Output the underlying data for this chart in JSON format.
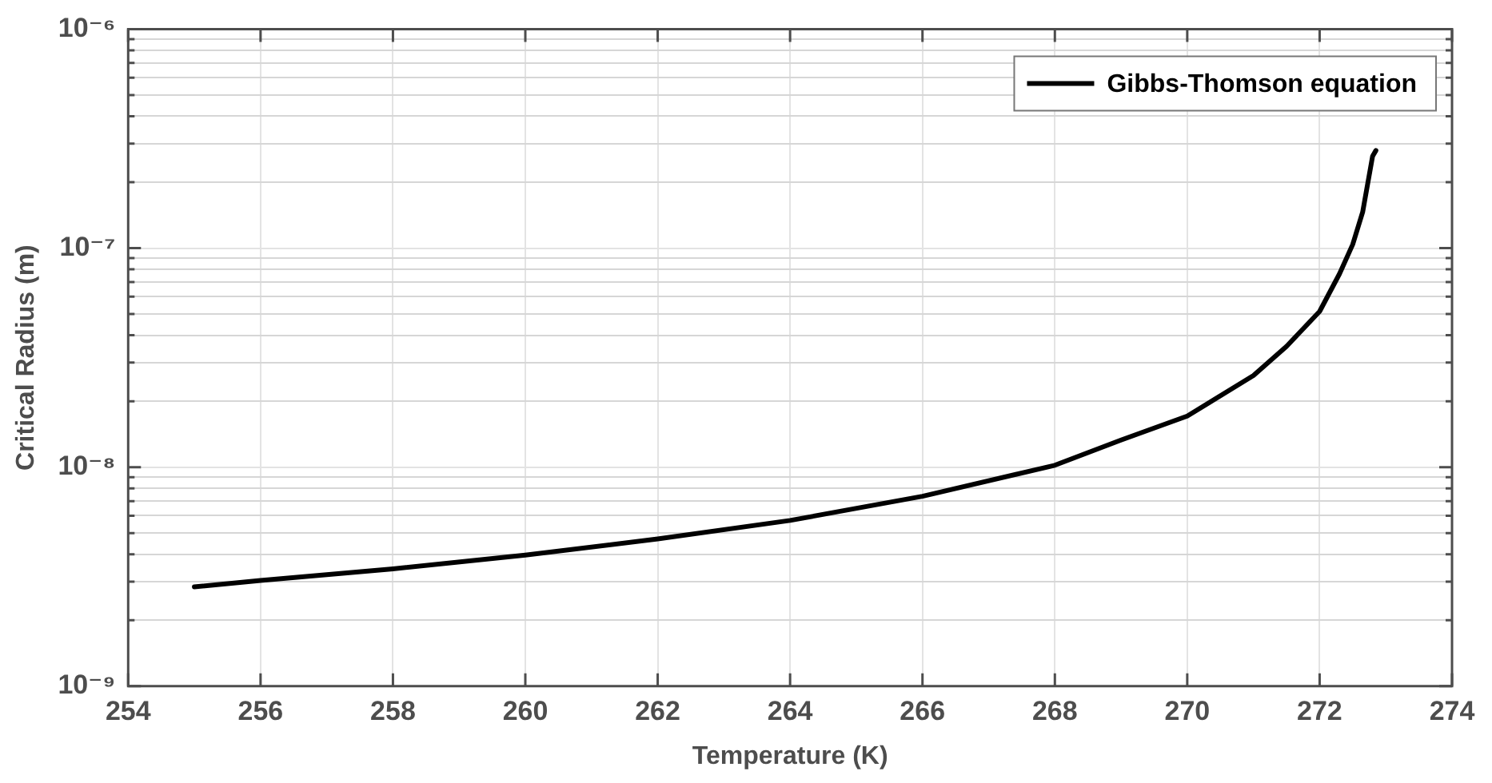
{
  "chart_data": {
    "type": "line",
    "xlabel": "Temperature (K)",
    "ylabel": "Critical Radius (m)",
    "x": [
      255,
      256,
      258,
      260,
      262,
      264,
      266,
      268,
      269,
      270,
      271,
      271.5,
      272,
      272.3,
      272.5,
      272.65,
      272.8,
      272.85
    ],
    "series": [
      {
        "name": "Gibbs-Thomson equation",
        "color": "#000000",
        "values": [
          2.84e-09,
          3.04e-09,
          3.43e-09,
          3.97e-09,
          4.7e-09,
          5.71e-09,
          7.36e-09,
          1.02e-08,
          1.33e-08,
          1.71e-08,
          2.62e-08,
          3.56e-08,
          5.14e-08,
          7.63e-08,
          1.04e-07,
          1.46e-07,
          2.63e-07,
          2.79e-07
        ]
      }
    ],
    "xlim": [
      254,
      274
    ],
    "xticks": [
      254,
      256,
      258,
      260,
      262,
      264,
      266,
      268,
      270,
      272,
      274
    ],
    "ylim": [
      1e-09,
      1e-06
    ],
    "yticks": [
      {
        "value": 1e-09,
        "label": "10⁻⁹"
      },
      {
        "value": 2e-09,
        "label": null
      },
      {
        "value": 3e-09,
        "label": null
      },
      {
        "value": 4e-09,
        "label": null
      },
      {
        "value": 5e-09,
        "label": null
      },
      {
        "value": 6e-09,
        "label": null
      },
      {
        "value": 7e-09,
        "label": null
      },
      {
        "value": 8e-09,
        "label": null
      },
      {
        "value": 9e-09,
        "label": null
      },
      {
        "value": 1e-08,
        "label": "10⁻⁸"
      },
      {
        "value": 2e-08,
        "label": null
      },
      {
        "value": 3e-08,
        "label": null
      },
      {
        "value": 4e-08,
        "label": null
      },
      {
        "value": 5e-08,
        "label": null
      },
      {
        "value": 6e-08,
        "label": null
      },
      {
        "value": 7e-08,
        "label": null
      },
      {
        "value": 8e-08,
        "label": null
      },
      {
        "value": 9e-08,
        "label": null
      },
      {
        "value": 1e-07,
        "label": "10⁻⁷"
      },
      {
        "value": 2e-07,
        "label": null
      },
      {
        "value": 3e-07,
        "label": null
      },
      {
        "value": 4e-07,
        "label": null
      },
      {
        "value": 5e-07,
        "label": null
      },
      {
        "value": 6e-07,
        "label": null
      },
      {
        "value": 7e-07,
        "label": null
      },
      {
        "value": 8e-07,
        "label": null
      },
      {
        "value": 9e-07,
        "label": null
      },
      {
        "value": 1e-06,
        "label": "10⁻⁶"
      }
    ],
    "log": "y",
    "grid": true,
    "legend": "top right",
    "marker": "none",
    "line_style": "solid"
  }
}
